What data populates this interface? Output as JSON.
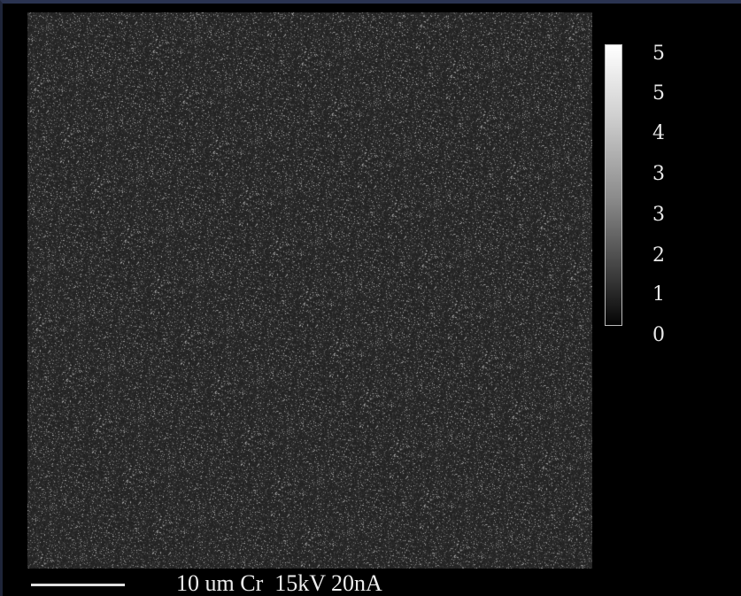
{
  "image": {
    "colorbar": {
      "tick_labels": [
        "5",
        "5",
        "4",
        "3",
        "3",
        "2",
        "1",
        "0"
      ],
      "gradient": "grayscale"
    },
    "footer": {
      "caption": "10 um Cr  15kV 20nA"
    },
    "colors": {
      "background": "#000000",
      "map_base": "#2b2b2b",
      "text": "#ececec"
    }
  }
}
